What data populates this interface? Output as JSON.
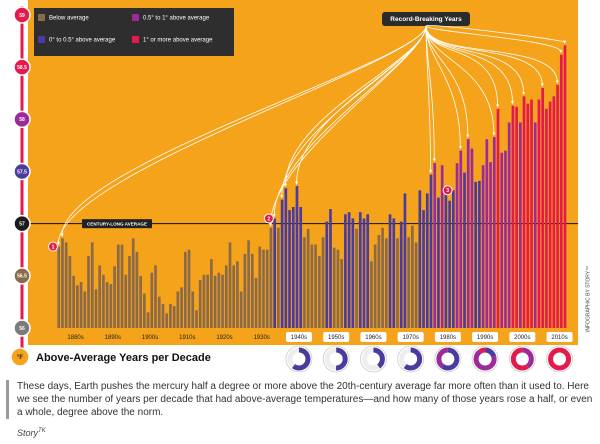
{
  "chart_data": {
    "type": "bar",
    "ylim": [
      56,
      59
    ],
    "yticks": [
      56,
      56.5,
      57,
      57.5,
      58,
      58.5,
      59
    ],
    "ytick_colors": [
      "#7a7a7a",
      "#8c6a48",
      "#1c1c1c",
      "#4b3b9e",
      "#9c2a98",
      "#e51a4c",
      "#e51a4c"
    ],
    "y_unit_label": "°F",
    "xlim": [
      1880,
      2017
    ],
    "xticks": [
      {
        "value": 1880,
        "label": "1880s"
      },
      {
        "value": 1890,
        "label": "1890s"
      },
      {
        "value": 1900,
        "label": "1900s"
      },
      {
        "value": 1910,
        "label": "1910s"
      },
      {
        "value": 1920,
        "label": "1920s"
      },
      {
        "value": 1930,
        "label": "1930s"
      },
      {
        "value": 1940,
        "label": "1940s"
      },
      {
        "value": 1950,
        "label": "1950s"
      },
      {
        "value": 1960,
        "label": "1960s"
      },
      {
        "value": 1970,
        "label": "1970s"
      },
      {
        "value": 1980,
        "label": "1980s"
      },
      {
        "value": 1990,
        "label": "1990s"
      },
      {
        "value": 2000,
        "label": "2000s"
      },
      {
        "value": 2010,
        "label": "2010s"
      }
    ],
    "series": [
      {
        "name": "Below average",
        "color": "#8c6a48",
        "x": [
          1880,
          1881,
          1882,
          1883,
          1884,
          1885,
          1886,
          1887,
          1888,
          1889,
          1890,
          1891,
          1892,
          1893,
          1894,
          1895,
          1896,
          1897,
          1898,
          1899,
          1900,
          1901,
          1902,
          1903,
          1904,
          1905,
          1906,
          1907,
          1908,
          1909,
          1910,
          1911,
          1912,
          1913,
          1914,
          1915,
          1916,
          1917,
          1918,
          1919,
          1920,
          1921,
          1922,
          1923,
          1924,
          1925,
          1926,
          1927,
          1928,
          1929,
          1930,
          1931,
          1932,
          1933,
          1934,
          1935,
          1936,
          1937,
          1939,
          1946,
          1947,
          1948,
          1949,
          1950,
          1951,
          1954,
          1955,
          1956,
          1960,
          1964,
          1965,
          1966,
          1967,
          1968,
          1971,
          1974,
          1975,
          1976
        ],
        "values": [
          56.78,
          56.86,
          56.82,
          56.69,
          56.5,
          56.41,
          56.44,
          56.35,
          56.69,
          56.82,
          56.37,
          56.6,
          56.51,
          56.44,
          56.42,
          56.59,
          56.8,
          56.8,
          56.51,
          56.69,
          56.86,
          56.73,
          56.5,
          56.33,
          56.15,
          56.53,
          56.6,
          56.3,
          56.23,
          56.14,
          56.23,
          56.21,
          56.35,
          56.39,
          56.73,
          56.75,
          56.35,
          56.17,
          56.46,
          56.51,
          56.51,
          56.66,
          56.5,
          56.53,
          56.51,
          56.6,
          56.82,
          56.6,
          56.64,
          56.35,
          56.71,
          56.84,
          56.71,
          56.48,
          56.78,
          56.75,
          56.75,
          56.96,
          56.96,
          56.87,
          56.95,
          56.8,
          56.8,
          56.69,
          56.87,
          56.77,
          56.75,
          56.66,
          56.95,
          56.64,
          56.8,
          56.89,
          56.96,
          56.86,
          56.86,
          56.87,
          56.98,
          56.82
        ]
      },
      {
        "name": "0° to 0.5° above average",
        "color": "#4b3b9e",
        "x": [
          1938,
          1940,
          1941,
          1942,
          1943,
          1944,
          1945,
          1952,
          1953,
          1957,
          1958,
          1959,
          1961,
          1962,
          1963,
          1969,
          1970,
          1972,
          1973,
          1977,
          1978,
          1979,
          1980,
          1982,
          1984,
          1985,
          1986,
          1989,
          1992,
          1993
        ],
        "values": [
          57.05,
          57.23,
          57.34,
          57.13,
          57.16,
          57.36,
          57.16,
          57.02,
          57.14,
          57.09,
          57.11,
          57.05,
          57.11,
          57.05,
          57.09,
          57.09,
          57.05,
          57.02,
          57.29,
          57.32,
          57.13,
          57.29,
          57.47,
          57.25,
          57.29,
          57.22,
          57.32,
          57.49,
          57.4,
          57.41
        ]
      },
      {
        "name": "0.5° to 1° above average",
        "color": "#9c2a98",
        "x": [
          1981,
          1983,
          1987,
          1988,
          1990,
          1991,
          1994,
          1995,
          1996,
          1997,
          1999,
          2000,
          2001,
          2004,
          2008
        ],
        "values": [
          57.58,
          57.56,
          57.58,
          57.7,
          57.81,
          57.72,
          57.56,
          57.81,
          57.59,
          57.83,
          57.68,
          57.7,
          57.97,
          57.97,
          57.97
        ]
      },
      {
        "name": "1° or more above average",
        "color": "#e51a4c",
        "x": [
          1998,
          2002,
          2003,
          2005,
          2006,
          2007,
          2009,
          2010,
          2011,
          2012,
          2013,
          2014,
          2015,
          2016
        ],
        "values": [
          58.1,
          58.13,
          58.12,
          58.22,
          58.15,
          58.19,
          58.19,
          58.3,
          58.1,
          58.17,
          58.22,
          58.33,
          58.62,
          58.71
        ]
      }
    ],
    "average_label": "CENTURY-LONG AVERAGE",
    "average_value": 57,
    "record_label": "Record-Breaking Years",
    "record_years": [
      1880,
      1881,
      1937,
      1938,
      1940,
      1941,
      1944,
      1980,
      1981,
      1988,
      1990,
      1997,
      1998,
      2002,
      2005,
      2010,
      2014,
      2015,
      2016
    ],
    "markers": [
      {
        "label": "1",
        "x": 1880
      },
      {
        "label": "2",
        "x": 1938
      },
      {
        "label": "3",
        "x": 1986
      }
    ],
    "subtitle": "Above-Average Years per Decade",
    "donuts": {
      "counts": [
        [
          6,
          0,
          0
        ],
        [
          5,
          0,
          0
        ],
        [
          4,
          0,
          0
        ],
        [
          6,
          0,
          0
        ],
        [
          6,
          4,
          0
        ],
        [
          2,
          7,
          1
        ],
        [
          0,
          4,
          6
        ],
        [
          0,
          0,
          7
        ]
      ],
      "years": [
        10,
        10,
        10,
        10,
        10,
        10,
        10,
        7
      ]
    },
    "credit": "INFOGRAPHIC BY STORY™"
  },
  "caption": {
    "text": "These days, Earth pushes the mercury half a degree or more above the 20th-century average far more often than it used to. Here we see the number of years per decade that had above-average temperatures—and how many of those years rose a half, or even a whole, degree above the norm.",
    "signature": "Story",
    "signature_sup": "TK"
  }
}
